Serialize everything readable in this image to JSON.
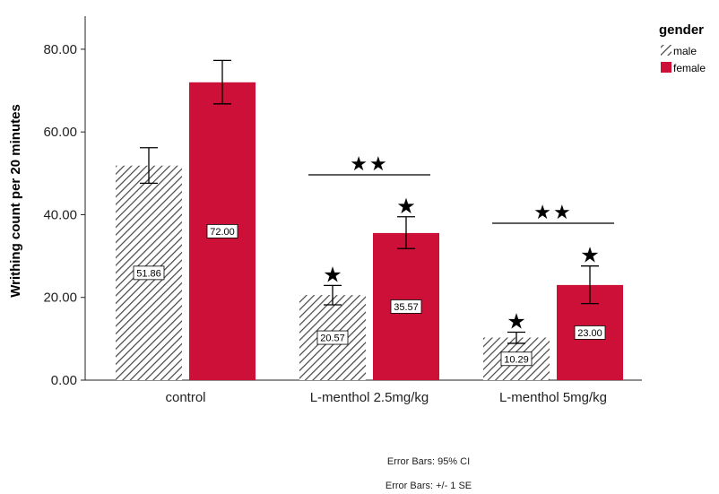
{
  "chart_data": {
    "type": "bar",
    "ylabel": "Writhing count per 20 minutes",
    "xlabel": "",
    "ylim": [
      0,
      88
    ],
    "yticks": [
      "0.00",
      "20.00",
      "40.00",
      "60.00",
      "80.00"
    ],
    "categories": [
      "control",
      "L-menthol 2.5mg/kg",
      "L-menthol 5mg/kg"
    ],
    "legend": {
      "title": "gender",
      "position": "top-right"
    },
    "series": [
      {
        "name": "male",
        "fill": "hatched",
        "color": "#555555",
        "values": [
          51.86,
          20.57,
          10.29
        ],
        "labels": [
          "51.86",
          "20.57",
          "10.29"
        ],
        "error_low": [
          47.6,
          18.2,
          8.9
        ],
        "error_high": [
          56.2,
          22.9,
          11.6
        ]
      },
      {
        "name": "female",
        "fill": "solid",
        "color": "#cc1037",
        "values": [
          72.0,
          35.57,
          23.0
        ],
        "labels": [
          "72.00",
          "35.57",
          "23.00"
        ],
        "error_low": [
          66.8,
          31.8,
          18.5
        ],
        "error_high": [
          77.3,
          39.5,
          27.6
        ]
      }
    ],
    "annotations": {
      "single_star": "★",
      "double_star": "★★"
    },
    "footnotes": [
      "Error Bars: 95% CI",
      "Error Bars: +/- 1 SE"
    ],
    "grid": false
  }
}
